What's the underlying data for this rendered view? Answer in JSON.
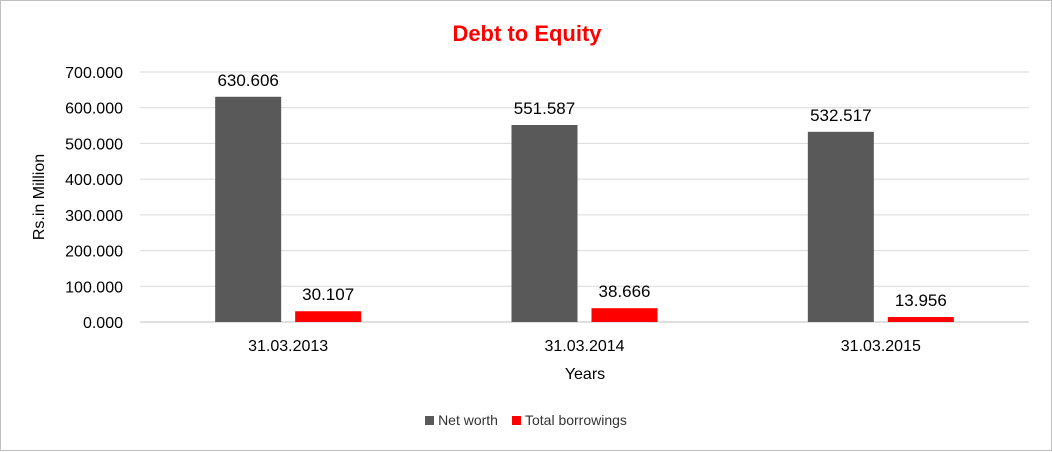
{
  "chart_data": {
    "type": "bar",
    "title": "Debt to Equity",
    "xlabel": "Years",
    "ylabel": "Rs.in Million",
    "categories": [
      "31.03.2013",
      "31.03.2014",
      "31.03.2015"
    ],
    "series": [
      {
        "name": "Net worth",
        "values": [
          630.606,
          551.587,
          532.517
        ],
        "labels": [
          "630.606",
          "551.587",
          "532.517"
        ],
        "color": "#595959"
      },
      {
        "name": "Total borrowings",
        "values": [
          30.107,
          38.666,
          13.956
        ],
        "labels": [
          "30.107",
          "38.666",
          "13.956"
        ],
        "color": "#ff0000"
      }
    ],
    "ylim": [
      0,
      700
    ],
    "yticks": [
      0,
      100,
      200,
      300,
      400,
      500,
      600,
      700
    ],
    "ytick_labels": [
      "0.000",
      "100.000",
      "200.000",
      "300.000",
      "400.000",
      "500.000",
      "600.000",
      "700.000"
    ],
    "grid": true,
    "legend_position": "bottom",
    "title_color": "#ff0000"
  }
}
